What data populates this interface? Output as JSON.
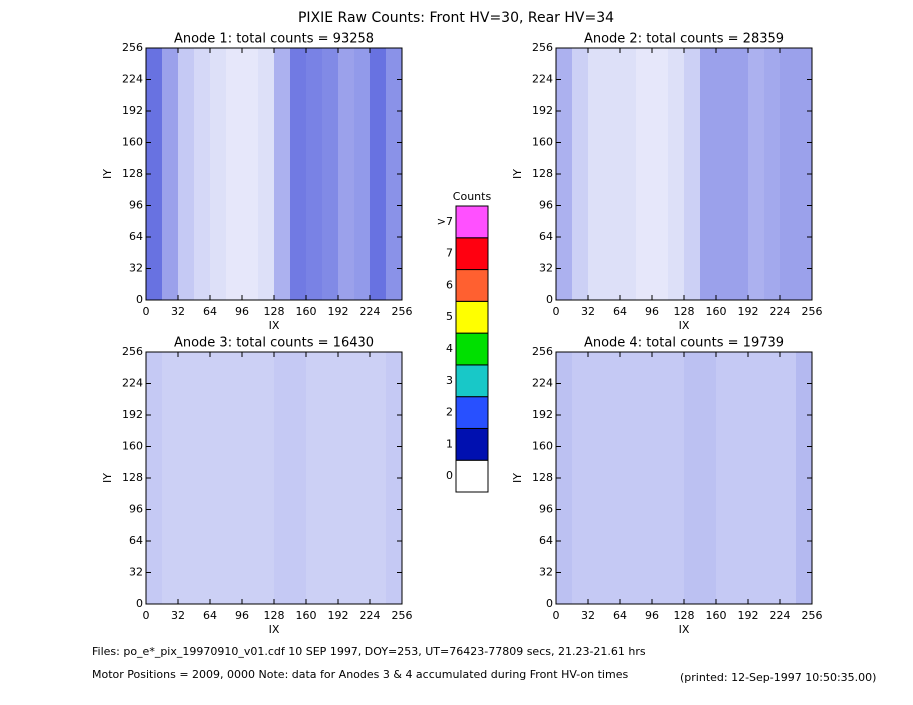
{
  "title": "PIXIE Raw Counts:  Front HV=30, Rear HV=34",
  "footer": {
    "files": "Files: po_e*_pix_19970910_v01.cdf     10 SEP 1997, DOY=253, UT=76423-77809 secs, 21.23-21.61 hrs",
    "motor": "Motor Positions = 2009, 0000   Note: data for Anodes 3 & 4 accumulated during Front HV-on times",
    "printed": "(printed: 12-Sep-1997 10:50:35.00)"
  },
  "colorbar": {
    "title": "Counts",
    "levels": [
      "0",
      "1",
      "2",
      "3",
      "4",
      "5",
      "6",
      "7",
      ">7"
    ],
    "colors": [
      "#ffffff",
      "#0010b0",
      "#2850ff",
      "#18c8c8",
      "#00e000",
      "#ffff00",
      "#ff6030",
      "#ff0010",
      "#ff50ff"
    ]
  },
  "chart_data": [
    {
      "type": "heatmap",
      "title": "Anode 1: total counts = 93258",
      "xlabel": "IX",
      "ylabel": "IY",
      "xlim": [
        0,
        256
      ],
      "ylim": [
        0,
        256
      ],
      "xticks": [
        0,
        32,
        64,
        96,
        128,
        160,
        192,
        224,
        256
      ],
      "yticks": [
        0,
        32,
        64,
        96,
        128,
        160,
        192,
        224,
        256
      ],
      "color": "#1020d0",
      "column_density": [
        0.9,
        0.6,
        0.35,
        0.25,
        0.2,
        0.15,
        0.15,
        0.2,
        0.5,
        0.85,
        0.8,
        0.75,
        0.6,
        0.65,
        0.9,
        0.7
      ]
    },
    {
      "type": "heatmap",
      "title": "Anode 2: total counts = 28359",
      "xlabel": "IX",
      "ylabel": "IY",
      "xlim": [
        0,
        256
      ],
      "ylim": [
        0,
        256
      ],
      "xticks": [
        0,
        32,
        64,
        96,
        128,
        160,
        192,
        224,
        256
      ],
      "yticks": [
        0,
        32,
        64,
        96,
        128,
        160,
        192,
        224,
        256
      ],
      "color": "#1020d0",
      "column_density": [
        0.5,
        0.3,
        0.2,
        0.2,
        0.2,
        0.15,
        0.15,
        0.2,
        0.3,
        0.6,
        0.6,
        0.6,
        0.5,
        0.55,
        0.6,
        0.6
      ]
    },
    {
      "type": "heatmap",
      "title": "Anode 3: total counts = 16430",
      "xlabel": "IX",
      "ylabel": "IY",
      "xlim": [
        0,
        256
      ],
      "ylim": [
        0,
        256
      ],
      "xticks": [
        0,
        32,
        64,
        96,
        128,
        160,
        192,
        224,
        256
      ],
      "yticks": [
        0,
        32,
        64,
        96,
        128,
        160,
        192,
        224,
        256
      ],
      "color": "#1020d0",
      "column_density": [
        0.35,
        0.3,
        0.3,
        0.3,
        0.3,
        0.3,
        0.3,
        0.3,
        0.35,
        0.35,
        0.3,
        0.3,
        0.3,
        0.3,
        0.3,
        0.35
      ]
    },
    {
      "type": "heatmap",
      "title": "Anode 4: total counts = 19739",
      "xlabel": "IX",
      "ylabel": "IY",
      "xlim": [
        0,
        256
      ],
      "ylim": [
        0,
        256
      ],
      "xticks": [
        0,
        32,
        64,
        96,
        128,
        160,
        192,
        224,
        256
      ],
      "yticks": [
        0,
        32,
        64,
        96,
        128,
        160,
        192,
        224,
        256
      ],
      "color": "#1020d0",
      "column_density": [
        0.4,
        0.35,
        0.35,
        0.35,
        0.35,
        0.35,
        0.35,
        0.35,
        0.4,
        0.4,
        0.35,
        0.35,
        0.35,
        0.35,
        0.35,
        0.45
      ]
    }
  ]
}
